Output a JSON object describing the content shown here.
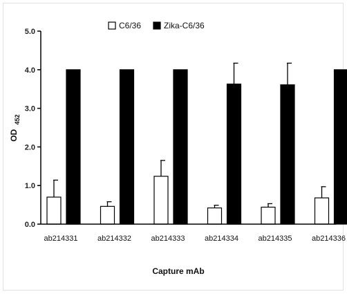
{
  "chart_data": {
    "type": "bar",
    "title": "",
    "xlabel": "Capture mAb",
    "ylabel": "OD",
    "ylabel_subscript": "452",
    "ylim": [
      0,
      5
    ],
    "yticks": [
      "0.0",
      "1.0",
      "2.0",
      "3.0",
      "4.0",
      "5.0"
    ],
    "yticks_values": [
      0,
      1,
      2,
      3,
      4,
      5
    ],
    "categories": [
      "ab214331",
      "ab214332",
      "ab214333",
      "ab214334",
      "ab214335",
      "ab214336"
    ],
    "series": [
      {
        "name": "C6/36",
        "values": [
          0.7,
          0.46,
          1.24,
          0.42,
          0.44,
          0.68
        ],
        "errors": [
          0.44,
          0.12,
          0.41,
          0.07,
          0.09,
          0.29
        ],
        "color": "#ffffff"
      },
      {
        "name": "Zika-C6/36",
        "values": [
          4.0,
          4.0,
          4.0,
          3.63,
          3.61,
          4.0
        ],
        "errors": [
          0,
          0,
          0,
          0.54,
          0.56,
          0
        ],
        "color": "#000000"
      }
    ],
    "legend_position": "top-center",
    "grid": false
  }
}
